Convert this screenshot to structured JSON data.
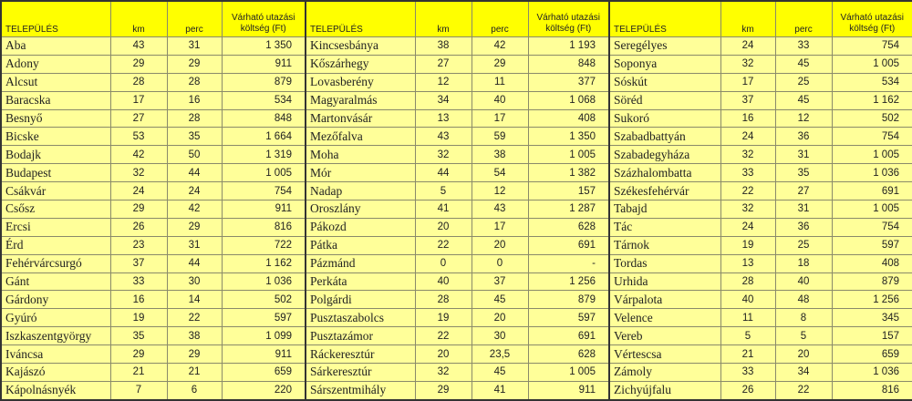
{
  "colors": {
    "header_bg": "#ffff00",
    "row_bg": "#ffff99"
  },
  "headers": {
    "name": "TELEPÜLÉS",
    "km": "km",
    "perc": "perc",
    "cost": "Várható utazási költség (Ft)"
  },
  "tables": [
    {
      "rows": [
        [
          "Aba",
          "43",
          "31",
          "1 350"
        ],
        [
          "Adony",
          "29",
          "29",
          "911"
        ],
        [
          "Alcsut",
          "28",
          "28",
          "879"
        ],
        [
          "Baracska",
          "17",
          "16",
          "534"
        ],
        [
          "Besnyő",
          "27",
          "28",
          "848"
        ],
        [
          "Bicske",
          "53",
          "35",
          "1 664"
        ],
        [
          "Bodajk",
          "42",
          "50",
          "1 319"
        ],
        [
          "Budapest",
          "32",
          "44",
          "1 005"
        ],
        [
          "Csákvár",
          "24",
          "24",
          "754"
        ],
        [
          "Csősz",
          "29",
          "42",
          "911"
        ],
        [
          "Ercsi",
          "26",
          "29",
          "816"
        ],
        [
          "Érd",
          "23",
          "31",
          "722"
        ],
        [
          "Fehérvárcsurgó",
          "37",
          "44",
          "1 162"
        ],
        [
          "Gánt",
          "33",
          "30",
          "1 036"
        ],
        [
          "Gárdony",
          "16",
          "14",
          "502"
        ],
        [
          "Gyúró",
          "19",
          "22",
          "597"
        ],
        [
          "Iszkaszentgyörgy",
          "35",
          "38",
          "1 099"
        ],
        [
          "Iváncsa",
          "29",
          "29",
          "911"
        ],
        [
          "Kajászó",
          "21",
          "21",
          "659"
        ],
        [
          "Kápolnásnyék",
          "7",
          "6",
          "220"
        ]
      ]
    },
    {
      "rows": [
        [
          "Kincsesbánya",
          "38",
          "42",
          "1 193"
        ],
        [
          "Kőszárhegy",
          "27",
          "29",
          "848"
        ],
        [
          "Lovasberény",
          "12",
          "11",
          "377"
        ],
        [
          "Magyaralmás",
          "34",
          "40",
          "1 068"
        ],
        [
          "Martonvásár",
          "13",
          "17",
          "408"
        ],
        [
          "Mezőfalva",
          "43",
          "59",
          "1 350"
        ],
        [
          "Moha",
          "32",
          "38",
          "1 005"
        ],
        [
          "Mór",
          "44",
          "54",
          "1 382"
        ],
        [
          "Nadap",
          "5",
          "12",
          "157"
        ],
        [
          "Oroszlány",
          "41",
          "43",
          "1 287"
        ],
        [
          "Pákozd",
          "20",
          "17",
          "628"
        ],
        [
          "Pátka",
          "22",
          "20",
          "691"
        ],
        [
          "Pázmánd",
          "0",
          "0",
          "-"
        ],
        [
          "Perkáta",
          "40",
          "37",
          "1 256"
        ],
        [
          "Polgárdi",
          "28",
          "45",
          "879"
        ],
        [
          "Pusztaszabolcs",
          "19",
          "20",
          "597"
        ],
        [
          "Pusztazámor",
          "22",
          "30",
          "691"
        ],
        [
          "Ráckeresztúr",
          "20",
          "23,5",
          "628"
        ],
        [
          "Sárkeresztúr",
          "32",
          "45",
          "1 005"
        ],
        [
          "Sárszentmihály",
          "29",
          "41",
          "911"
        ]
      ]
    },
    {
      "rows": [
        [
          "Seregélyes",
          "24",
          "33",
          "754"
        ],
        [
          "Soponya",
          "32",
          "45",
          "1 005"
        ],
        [
          "Sóskút",
          "17",
          "25",
          "534"
        ],
        [
          "Söréd",
          "37",
          "45",
          "1 162"
        ],
        [
          "Sukoró",
          "16",
          "12",
          "502"
        ],
        [
          "Szabadbattyán",
          "24",
          "36",
          "754"
        ],
        [
          "Szabadegyháza",
          "32",
          "31",
          "1 005"
        ],
        [
          "Százhalombatta",
          "33",
          "35",
          "1 036"
        ],
        [
          "Székesfehérvár",
          "22",
          "27",
          "691"
        ],
        [
          "Tabajd",
          "32",
          "31",
          "1 005"
        ],
        [
          "Tác",
          "24",
          "36",
          "754"
        ],
        [
          "Tárnok",
          "19",
          "25",
          "597"
        ],
        [
          "Tordas",
          "13",
          "18",
          "408"
        ],
        [
          "Urhida",
          "28",
          "40",
          "879"
        ],
        [
          "Várpalota",
          "40",
          "48",
          "1 256"
        ],
        [
          "Velence",
          "11",
          "8",
          "345"
        ],
        [
          "Vereb",
          "5",
          "5",
          "157"
        ],
        [
          "Vértescsa",
          "21",
          "20",
          "659"
        ],
        [
          "Zámoly",
          "33",
          "34",
          "1 036"
        ],
        [
          "Zichyújfalu",
          "26",
          "22",
          "816"
        ]
      ]
    }
  ]
}
